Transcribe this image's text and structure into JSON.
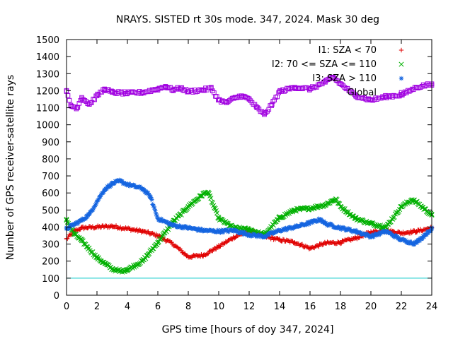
{
  "chart_data": {
    "type": "scatter",
    "title": "NRAYS. SISTED rt 30s mode. 347, 2024. Mask 30 deg",
    "xlabel": "GPS time [hours of doy 347, 2024]",
    "ylabel": "Number of GPS receiver-satellite rays",
    "xlim": [
      0,
      24
    ],
    "ylim": [
      0,
      1500
    ],
    "xticks": [
      "0",
      "2",
      "4",
      "6",
      "8",
      "10",
      "12",
      "14",
      "16",
      "18",
      "20",
      "22",
      "24"
    ],
    "yticks": [
      "0",
      "100",
      "200",
      "300",
      "400",
      "500",
      "600",
      "700",
      "800",
      "900",
      "1000",
      "1100",
      "1200",
      "1300",
      "1400",
      "1500"
    ],
    "legend_position": "top-right",
    "reference_line": {
      "y": 100,
      "color": "#00c8c8"
    },
    "series": [
      {
        "name": "I1: SZA < 70",
        "marker": "+",
        "color": "#e00000",
        "x": [
          0,
          0.5,
          1,
          2,
          3,
          4,
          5,
          6,
          7,
          8,
          9,
          10,
          11,
          12,
          13,
          14,
          15,
          16,
          17,
          18,
          19,
          20,
          21,
          22,
          23,
          24
        ],
        "y": [
          330,
          375,
          395,
          400,
          405,
          390,
          375,
          350,
          300,
          225,
          235,
          285,
          340,
          380,
          345,
          325,
          310,
          275,
          305,
          310,
          335,
          370,
          380,
          365,
          375,
          395
        ]
      },
      {
        "name": "I2: 70 <= SZA <= 110",
        "marker": "x",
        "color": "#00b000",
        "x": [
          0,
          0.5,
          1,
          2,
          3,
          3.5,
          4,
          5,
          6,
          7,
          8,
          9,
          9.3,
          10,
          11,
          12,
          13,
          14,
          15,
          16,
          17,
          17.7,
          18,
          19,
          20,
          21,
          22,
          22.7,
          23,
          24
        ],
        "y": [
          440,
          360,
          320,
          220,
          155,
          140,
          150,
          200,
          310,
          430,
          520,
          595,
          605,
          450,
          395,
          385,
          355,
          455,
          500,
          510,
          530,
          565,
          520,
          450,
          420,
          400,
          520,
          560,
          545,
          470
        ]
      },
      {
        "name": "I3: SZA > 110",
        "marker": "*",
        "color": "#1565e0",
        "x": [
          0,
          0.5,
          1,
          1.5,
          2,
          2.5,
          3,
          3.5,
          4,
          5,
          5.5,
          6,
          7,
          8,
          9,
          10,
          11,
          12,
          13,
          14,
          15,
          16,
          16.7,
          17,
          18,
          19,
          20,
          21,
          22,
          22.8,
          23,
          24
        ],
        "y": [
          390,
          415,
          440,
          475,
          550,
          620,
          655,
          670,
          650,
          625,
          580,
          450,
          410,
          395,
          380,
          375,
          380,
          355,
          345,
          380,
          400,
          425,
          445,
          420,
          395,
          375,
          345,
          375,
          325,
          305,
          310,
          390
        ]
      },
      {
        "name": "Global",
        "marker": "square",
        "color": "#a000e0",
        "x": [
          0,
          0.3,
          0.7,
          1,
          1.5,
          2,
          2.5,
          3,
          4,
          5,
          6,
          6.5,
          7,
          7.5,
          8,
          9,
          9.5,
          10,
          10.5,
          11,
          11.5,
          12,
          12.5,
          13,
          13.5,
          14,
          15,
          16,
          17,
          17.5,
          18,
          19,
          20,
          21,
          22,
          23,
          24
        ],
        "y": [
          1195,
          1110,
          1100,
          1160,
          1120,
          1170,
          1210,
          1190,
          1185,
          1190,
          1210,
          1225,
          1205,
          1215,
          1195,
          1205,
          1215,
          1145,
          1130,
          1155,
          1170,
          1150,
          1100,
          1060,
          1120,
          1195,
          1220,
          1210,
          1250,
          1280,
          1240,
          1170,
          1145,
          1165,
          1175,
          1220,
          1240
        ]
      }
    ]
  }
}
